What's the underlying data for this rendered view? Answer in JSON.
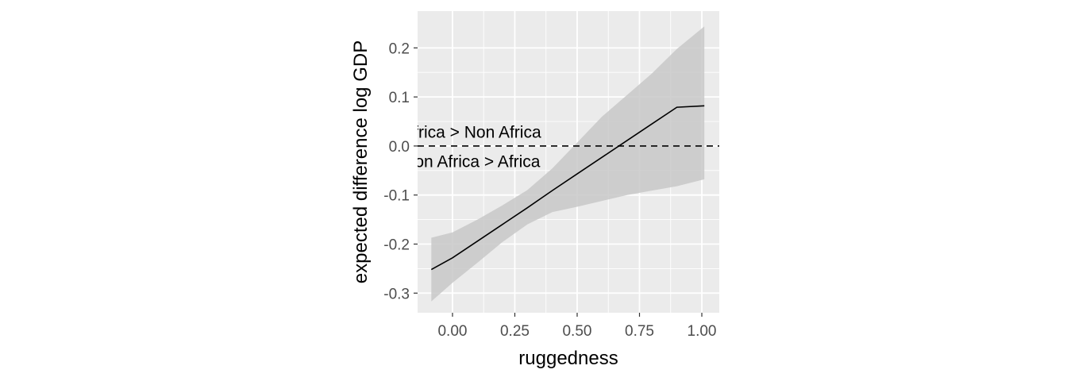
{
  "chart_data": {
    "type": "line",
    "xlabel": "ruggedness",
    "ylabel": "expected difference log GDP",
    "xlim": [
      -0.14,
      1.07
    ],
    "ylim": [
      -0.34,
      0.275
    ],
    "x_ticks": [
      "0.00",
      "0.25",
      "0.50",
      "0.75",
      "1.00"
    ],
    "x_tick_values": [
      0,
      0.25,
      0.5,
      0.75,
      1.0
    ],
    "y_ticks": [
      "-0.3",
      "-0.2",
      "-0.1",
      "0.0",
      "0.1",
      "0.2"
    ],
    "y_tick_values": [
      -0.3,
      -0.2,
      -0.1,
      0.0,
      0.1,
      0.2
    ],
    "grid": true,
    "series": [
      {
        "x": [
          -0.085,
          0.0,
          0.1,
          0.2,
          0.3,
          0.4,
          0.5,
          0.6,
          0.7,
          0.8,
          0.9,
          1.01
        ],
        "values": [
          -0.252,
          -0.228,
          -0.194,
          -0.16,
          -0.126,
          -0.091,
          -0.057,
          -0.023,
          0.011,
          0.045,
          0.079,
          0.082
        ],
        "lower": [
          -0.317,
          -0.279,
          -0.238,
          -0.196,
          -0.16,
          -0.135,
          -0.124,
          -0.112,
          -0.1,
          -0.091,
          -0.082,
          -0.068
        ],
        "upper": [
          -0.187,
          -0.176,
          -0.15,
          -0.121,
          -0.09,
          -0.046,
          0.007,
          0.06,
          0.104,
          0.148,
          0.198,
          0.244
        ]
      }
    ],
    "reference_line": {
      "y": 0.0,
      "style": "dashed"
    },
    "annotations": [
      {
        "text": "Africa > Non Africa",
        "x": -0.2,
        "y": 0.028
      },
      {
        "text": "Non Africa > Africa",
        "x": -0.2,
        "y": -0.032
      }
    ],
    "colors": {
      "panel": "#ebebeb",
      "grid": "#ffffff",
      "ribbon": "#c8c8c8",
      "line": "#000000"
    }
  }
}
